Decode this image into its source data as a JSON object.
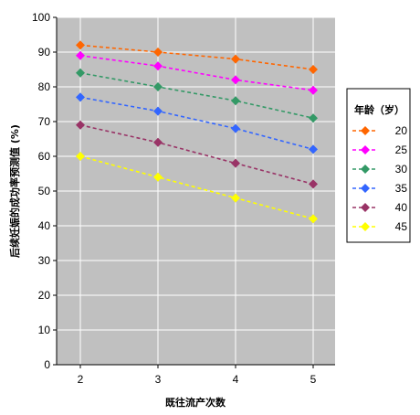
{
  "chart_data": {
    "type": "line",
    "xlabel": "既往流产次数",
    "ylabel": "后续妊娠的成功率预测值 (%)",
    "x": [
      2,
      3,
      4,
      5
    ],
    "ylim": [
      0,
      100
    ],
    "yticks": [
      0,
      10,
      20,
      30,
      40,
      50,
      60,
      70,
      80,
      90,
      100
    ],
    "grid": true,
    "line_style": "dashed",
    "marker": "diamond",
    "legend_title": "年龄（岁）",
    "legend_position": "right",
    "series": [
      {
        "name": "20",
        "values": [
          92,
          90,
          88,
          85
        ],
        "color": "#ff6600"
      },
      {
        "name": "25",
        "values": [
          89,
          86,
          82,
          79
        ],
        "color": "#ff00ff"
      },
      {
        "name": "30",
        "values": [
          84,
          80,
          76,
          71
        ],
        "color": "#339966"
      },
      {
        "name": "35",
        "values": [
          77,
          73,
          68,
          62
        ],
        "color": "#3366ff"
      },
      {
        "name": "40",
        "values": [
          69,
          64,
          58,
          52
        ],
        "color": "#993366"
      },
      {
        "name": "45",
        "values": [
          60,
          54,
          48,
          42
        ],
        "color": "#ffff00"
      }
    ],
    "plot_background": "#c0c0c0",
    "gridline_color": "#ffffff"
  }
}
